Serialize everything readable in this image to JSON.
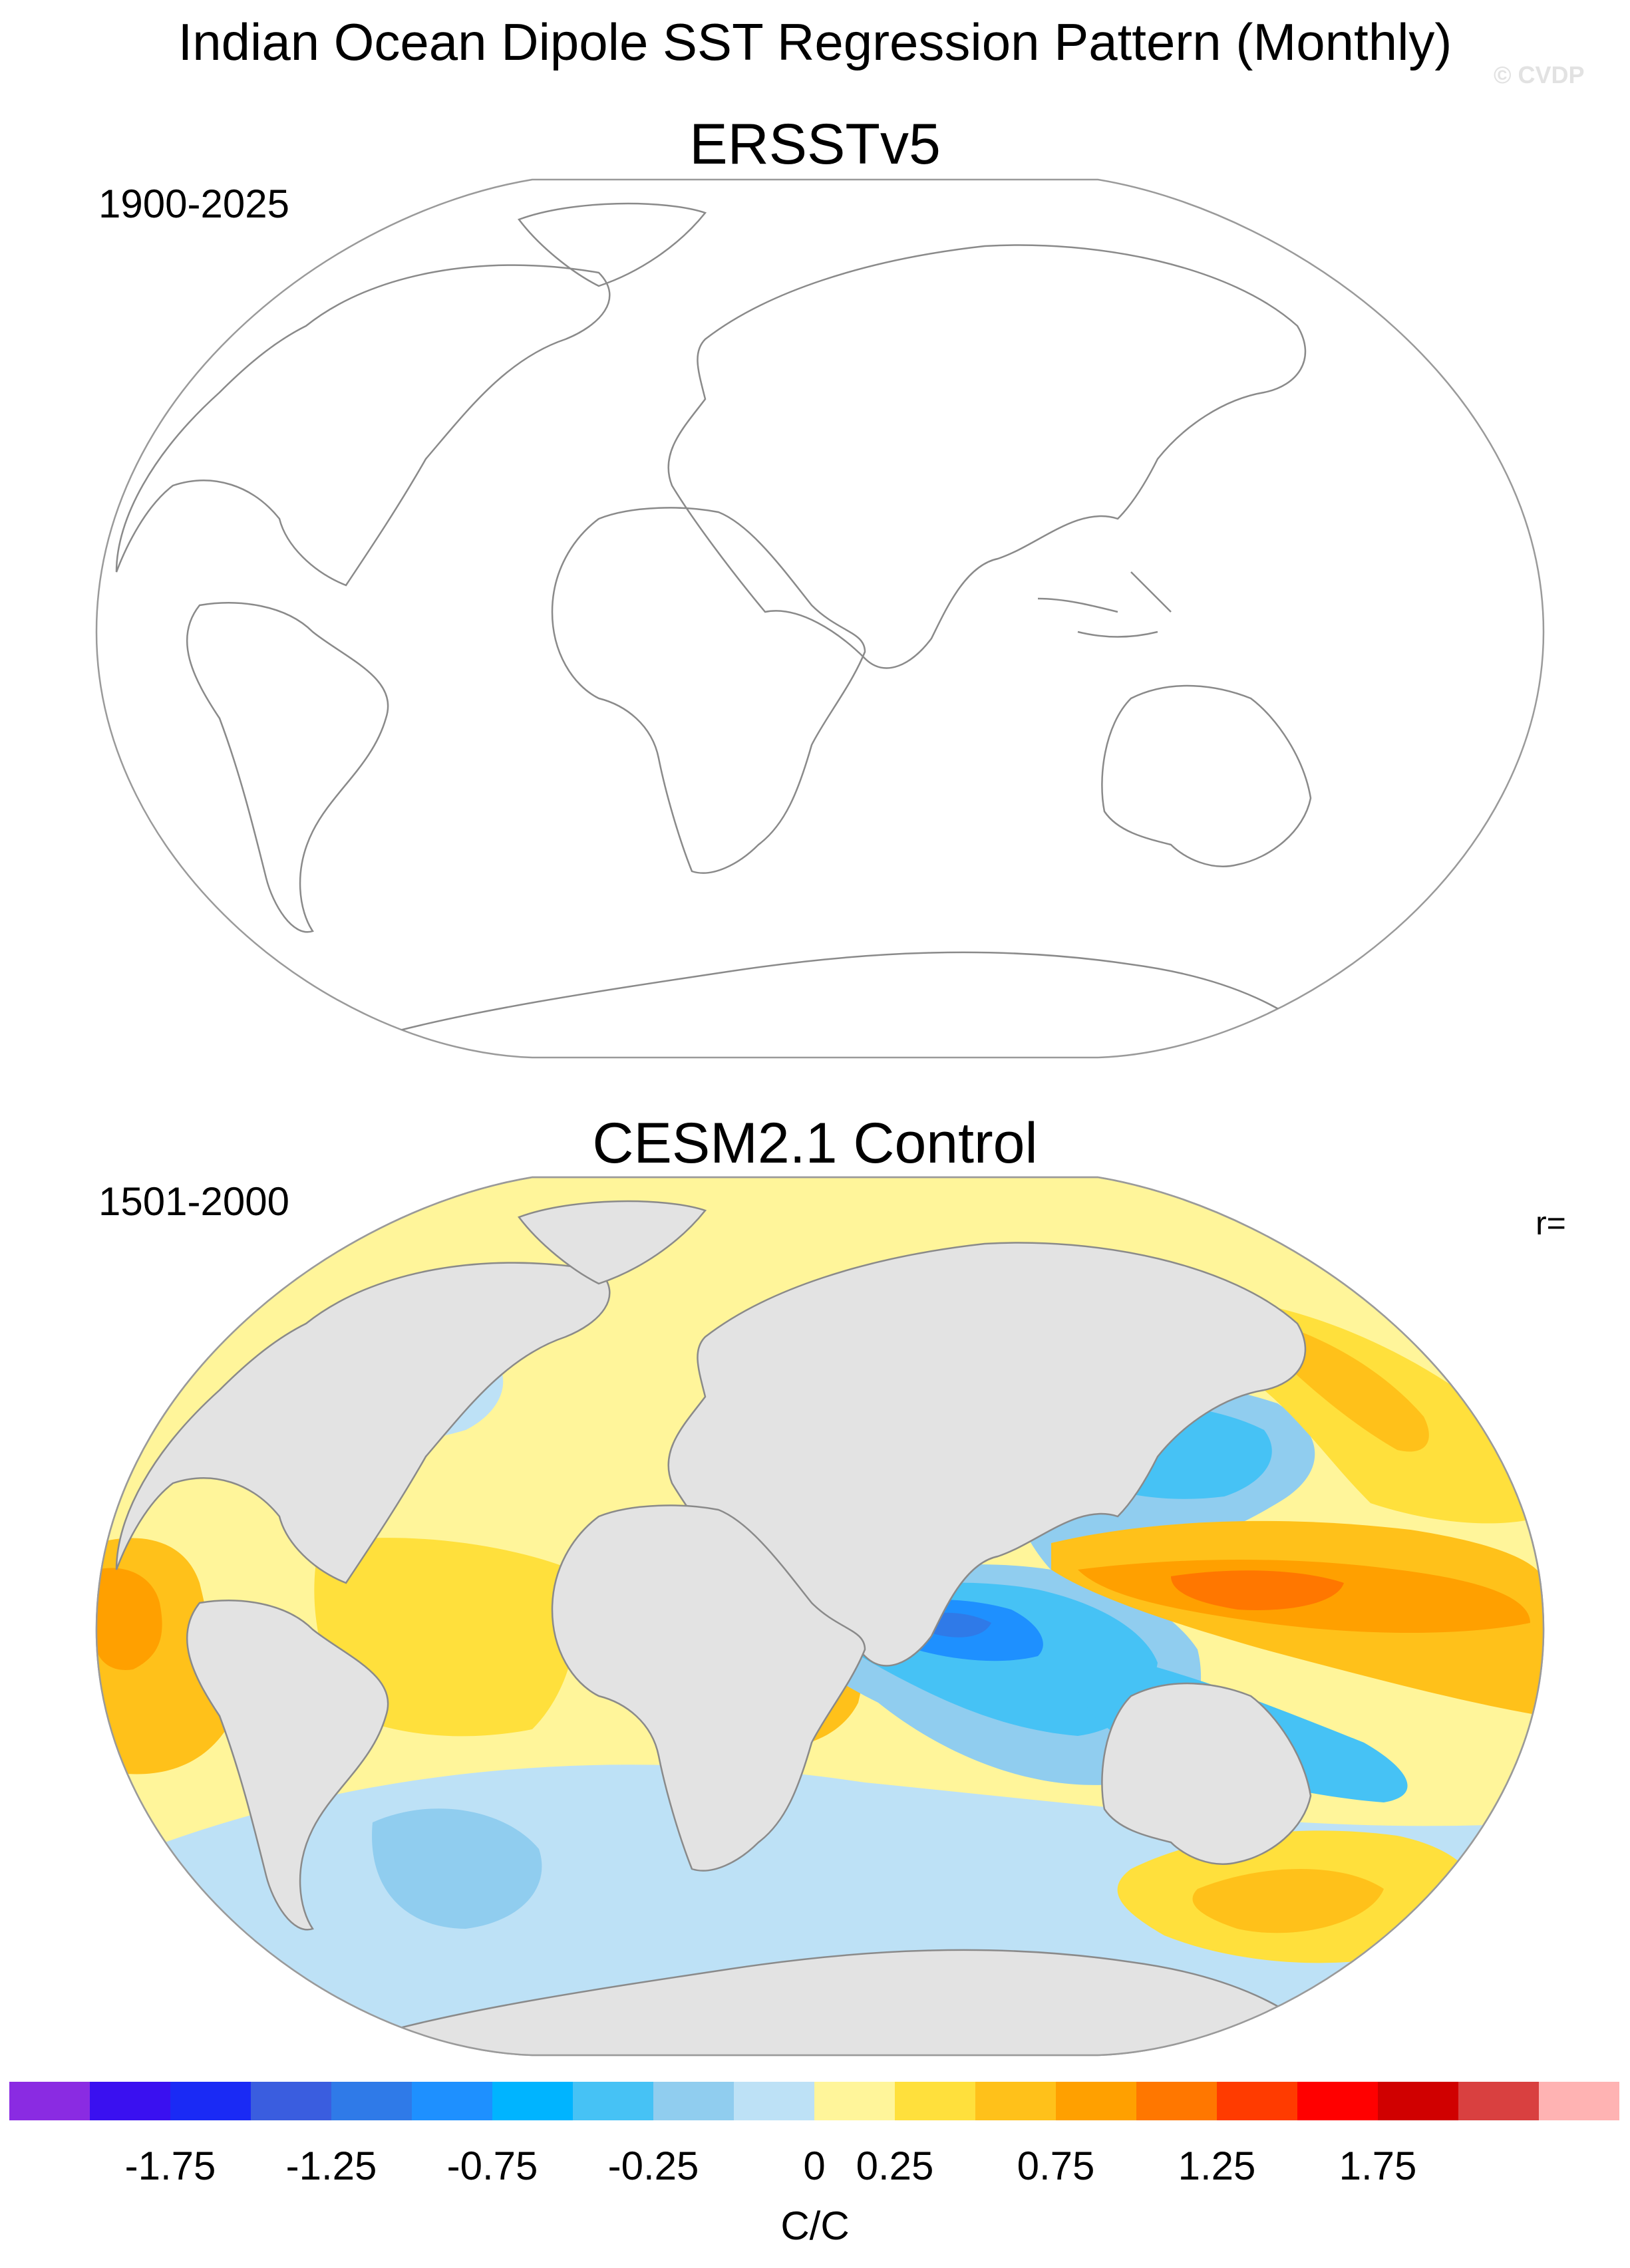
{
  "title": "Indian Ocean Dipole SST Regression Pattern (Monthly)",
  "watermark": "© CVDP",
  "panels": [
    {
      "title": "ERSSTv5",
      "period": "1900-2025"
    },
    {
      "title": "CESM2.1 Control",
      "period": "1501-2000",
      "r_label": "r="
    }
  ],
  "colors": {
    "land_fill": "#e3e3e3",
    "coastline": "#8a8a8a",
    "map_border": "#9a9a9a"
  },
  "colorbar": {
    "units": "C/C",
    "tick_labels": [
      "-1.75",
      "-1.25",
      "-0.75",
      "-0.25",
      "0",
      "0.25",
      "0.75",
      "1.25",
      "1.75"
    ],
    "colors": [
      "#8a2be2",
      "#3a10f0",
      "#1a2af5",
      "#3a5ddf",
      "#2f7ae8",
      "#1e90ff",
      "#00b4ff",
      "#46c2f5",
      "#90cdef",
      "#bde1f6",
      "#fff59a",
      "#ffe03c",
      "#ffc11a",
      "#ffa000",
      "#ff7700",
      "#ff3b00",
      "#ff0000",
      "#d00000",
      "#d94040",
      "#ffb3b3"
    ]
  }
}
